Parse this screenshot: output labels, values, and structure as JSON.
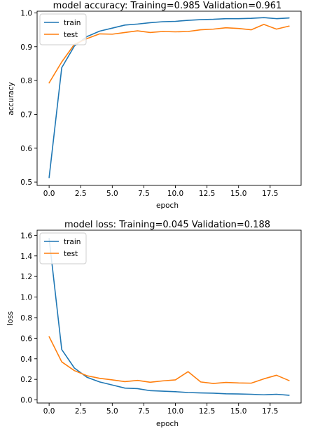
{
  "chart_data": [
    {
      "type": "line",
      "title": "model accuracy:  Training=0.985 Validation=0.961",
      "xlabel": "epoch",
      "ylabel": "accuracy",
      "x": [
        0,
        1,
        2,
        3,
        4,
        5,
        6,
        7,
        8,
        9,
        10,
        11,
        12,
        13,
        14,
        15,
        16,
        17,
        18,
        19
      ],
      "xlim": [
        -0.95,
        19.95
      ],
      "ylim": [
        0.49,
        1.005
      ],
      "xticks": [
        0,
        2.5,
        5,
        7.5,
        10,
        12.5,
        15,
        17.5
      ],
      "xtick_labels": [
        "0.0",
        "2.5",
        "5.0",
        "7.5",
        "10.0",
        "12.5",
        "15.0",
        "17.5"
      ],
      "yticks": [
        0.5,
        0.6,
        0.7,
        0.8,
        0.9,
        1.0
      ],
      "ytick_labels": [
        "0.5",
        "0.6",
        "0.7",
        "0.8",
        "0.9",
        "1.0"
      ],
      "grid": false,
      "legend_position": "upper-left",
      "series": [
        {
          "name": "train",
          "color": "#1f77b4",
          "values": [
            0.513,
            0.838,
            0.902,
            0.93,
            0.946,
            0.955,
            0.964,
            0.967,
            0.971,
            0.974,
            0.975,
            0.978,
            0.98,
            0.981,
            0.983,
            0.983,
            0.984,
            0.986,
            0.983,
            0.985
          ]
        },
        {
          "name": "test",
          "color": "#ff7f0e",
          "values": [
            0.793,
            0.855,
            0.907,
            0.924,
            0.938,
            0.937,
            0.942,
            0.947,
            0.942,
            0.945,
            0.944,
            0.945,
            0.95,
            0.952,
            0.956,
            0.954,
            0.95,
            0.966,
            0.952,
            0.961
          ]
        }
      ]
    },
    {
      "type": "line",
      "title": "model loss:  Training=0.045 Validation=0.188",
      "xlabel": "epoch",
      "ylabel": "loss",
      "x": [
        0,
        1,
        2,
        3,
        4,
        5,
        6,
        7,
        8,
        9,
        10,
        11,
        12,
        13,
        14,
        15,
        16,
        17,
        18,
        19
      ],
      "xlim": [
        -0.95,
        19.95
      ],
      "ylim": [
        -0.03,
        1.65
      ],
      "xticks": [
        0,
        2.5,
        5,
        7.5,
        10,
        12.5,
        15,
        17.5
      ],
      "xtick_labels": [
        "0.0",
        "2.5",
        "5.0",
        "7.5",
        "10.0",
        "12.5",
        "15.0",
        "17.5"
      ],
      "yticks": [
        0.0,
        0.2,
        0.4,
        0.6,
        0.8,
        1.0,
        1.2,
        1.4,
        1.6
      ],
      "ytick_labels": [
        "0.0",
        "0.2",
        "0.4",
        "0.6",
        "0.8",
        "1.0",
        "1.2",
        "1.4",
        "1.6"
      ],
      "grid": false,
      "legend_position": "upper-left",
      "series": [
        {
          "name": "train",
          "color": "#1f77b4",
          "values": [
            1.57,
            0.49,
            0.31,
            0.22,
            0.175,
            0.145,
            0.115,
            0.11,
            0.09,
            0.085,
            0.08,
            0.072,
            0.068,
            0.066,
            0.06,
            0.058,
            0.055,
            0.05,
            0.055,
            0.045
          ]
        },
        {
          "name": "test",
          "color": "#ff7f0e",
          "values": [
            0.615,
            0.37,
            0.285,
            0.235,
            0.21,
            0.195,
            0.178,
            0.19,
            0.172,
            0.185,
            0.195,
            0.275,
            0.175,
            0.16,
            0.17,
            0.165,
            0.163,
            0.205,
            0.24,
            0.188
          ]
        }
      ]
    }
  ]
}
